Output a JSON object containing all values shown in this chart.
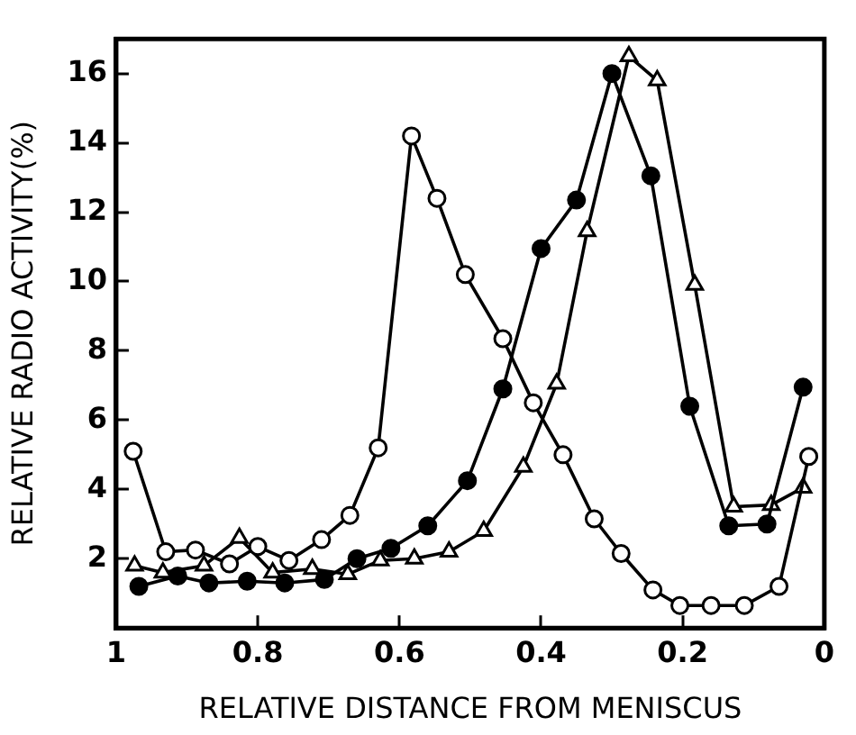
{
  "chart_data": {
    "type": "line",
    "xlabel": "RELATIVE DISTANCE FROM MENISCUS",
    "ylabel": "RELATIVE RADIO ACTIVITY(%)",
    "xlim": [
      1,
      0
    ],
    "xticks": [
      1,
      0.8,
      0.6,
      0.4,
      0.2,
      0
    ],
    "ylim": [
      0,
      17
    ],
    "yticks": [
      2,
      4,
      6,
      8,
      10,
      12,
      14,
      16
    ],
    "grid": false,
    "legend": false,
    "line_style": "solid",
    "series": [
      {
        "color": "#000000",
        "marker": "circle-open",
        "x": [
          0.976,
          0.93,
          0.888,
          0.84,
          0.8,
          0.756,
          0.71,
          0.67,
          0.63,
          0.583,
          0.547,
          0.507,
          0.454,
          0.411,
          0.369,
          0.325,
          0.287,
          0.242,
          0.204,
          0.16,
          0.113,
          0.064,
          0.022
        ],
        "values": [
          5.1,
          2.2,
          2.25,
          1.85,
          2.35,
          1.95,
          2.55,
          3.25,
          5.2,
          14.2,
          12.4,
          10.2,
          8.35,
          6.5,
          5.0,
          3.15,
          2.15,
          1.1,
          0.65,
          0.65,
          0.65,
          1.2,
          4.95
        ]
      },
      {
        "color": "#000000",
        "marker": "circle",
        "x": [
          0.968,
          0.913,
          0.869,
          0.815,
          0.762,
          0.706,
          0.66,
          0.612,
          0.56,
          0.504,
          0.454,
          0.4,
          0.35,
          0.3,
          0.245,
          0.19,
          0.135,
          0.081,
          0.03
        ],
        "values": [
          1.2,
          1.5,
          1.3,
          1.35,
          1.3,
          1.4,
          2.0,
          2.3,
          2.95,
          4.25,
          6.9,
          10.95,
          12.35,
          16.0,
          13.05,
          6.4,
          2.95,
          3.0,
          6.95
        ]
      },
      {
        "color": "#000000",
        "marker": "triangle-open",
        "x": [
          0.974,
          0.934,
          0.876,
          0.826,
          0.779,
          0.723,
          0.673,
          0.627,
          0.579,
          0.53,
          0.481,
          0.425,
          0.378,
          0.335,
          0.276,
          0.236,
          0.183,
          0.128,
          0.075,
          0.03
        ],
        "values": [
          1.8,
          1.6,
          1.8,
          2.6,
          1.6,
          1.7,
          1.55,
          1.95,
          2.0,
          2.2,
          2.8,
          4.65,
          7.05,
          11.45,
          16.5,
          15.8,
          9.9,
          3.5,
          3.55,
          4.05
        ]
      }
    ]
  }
}
